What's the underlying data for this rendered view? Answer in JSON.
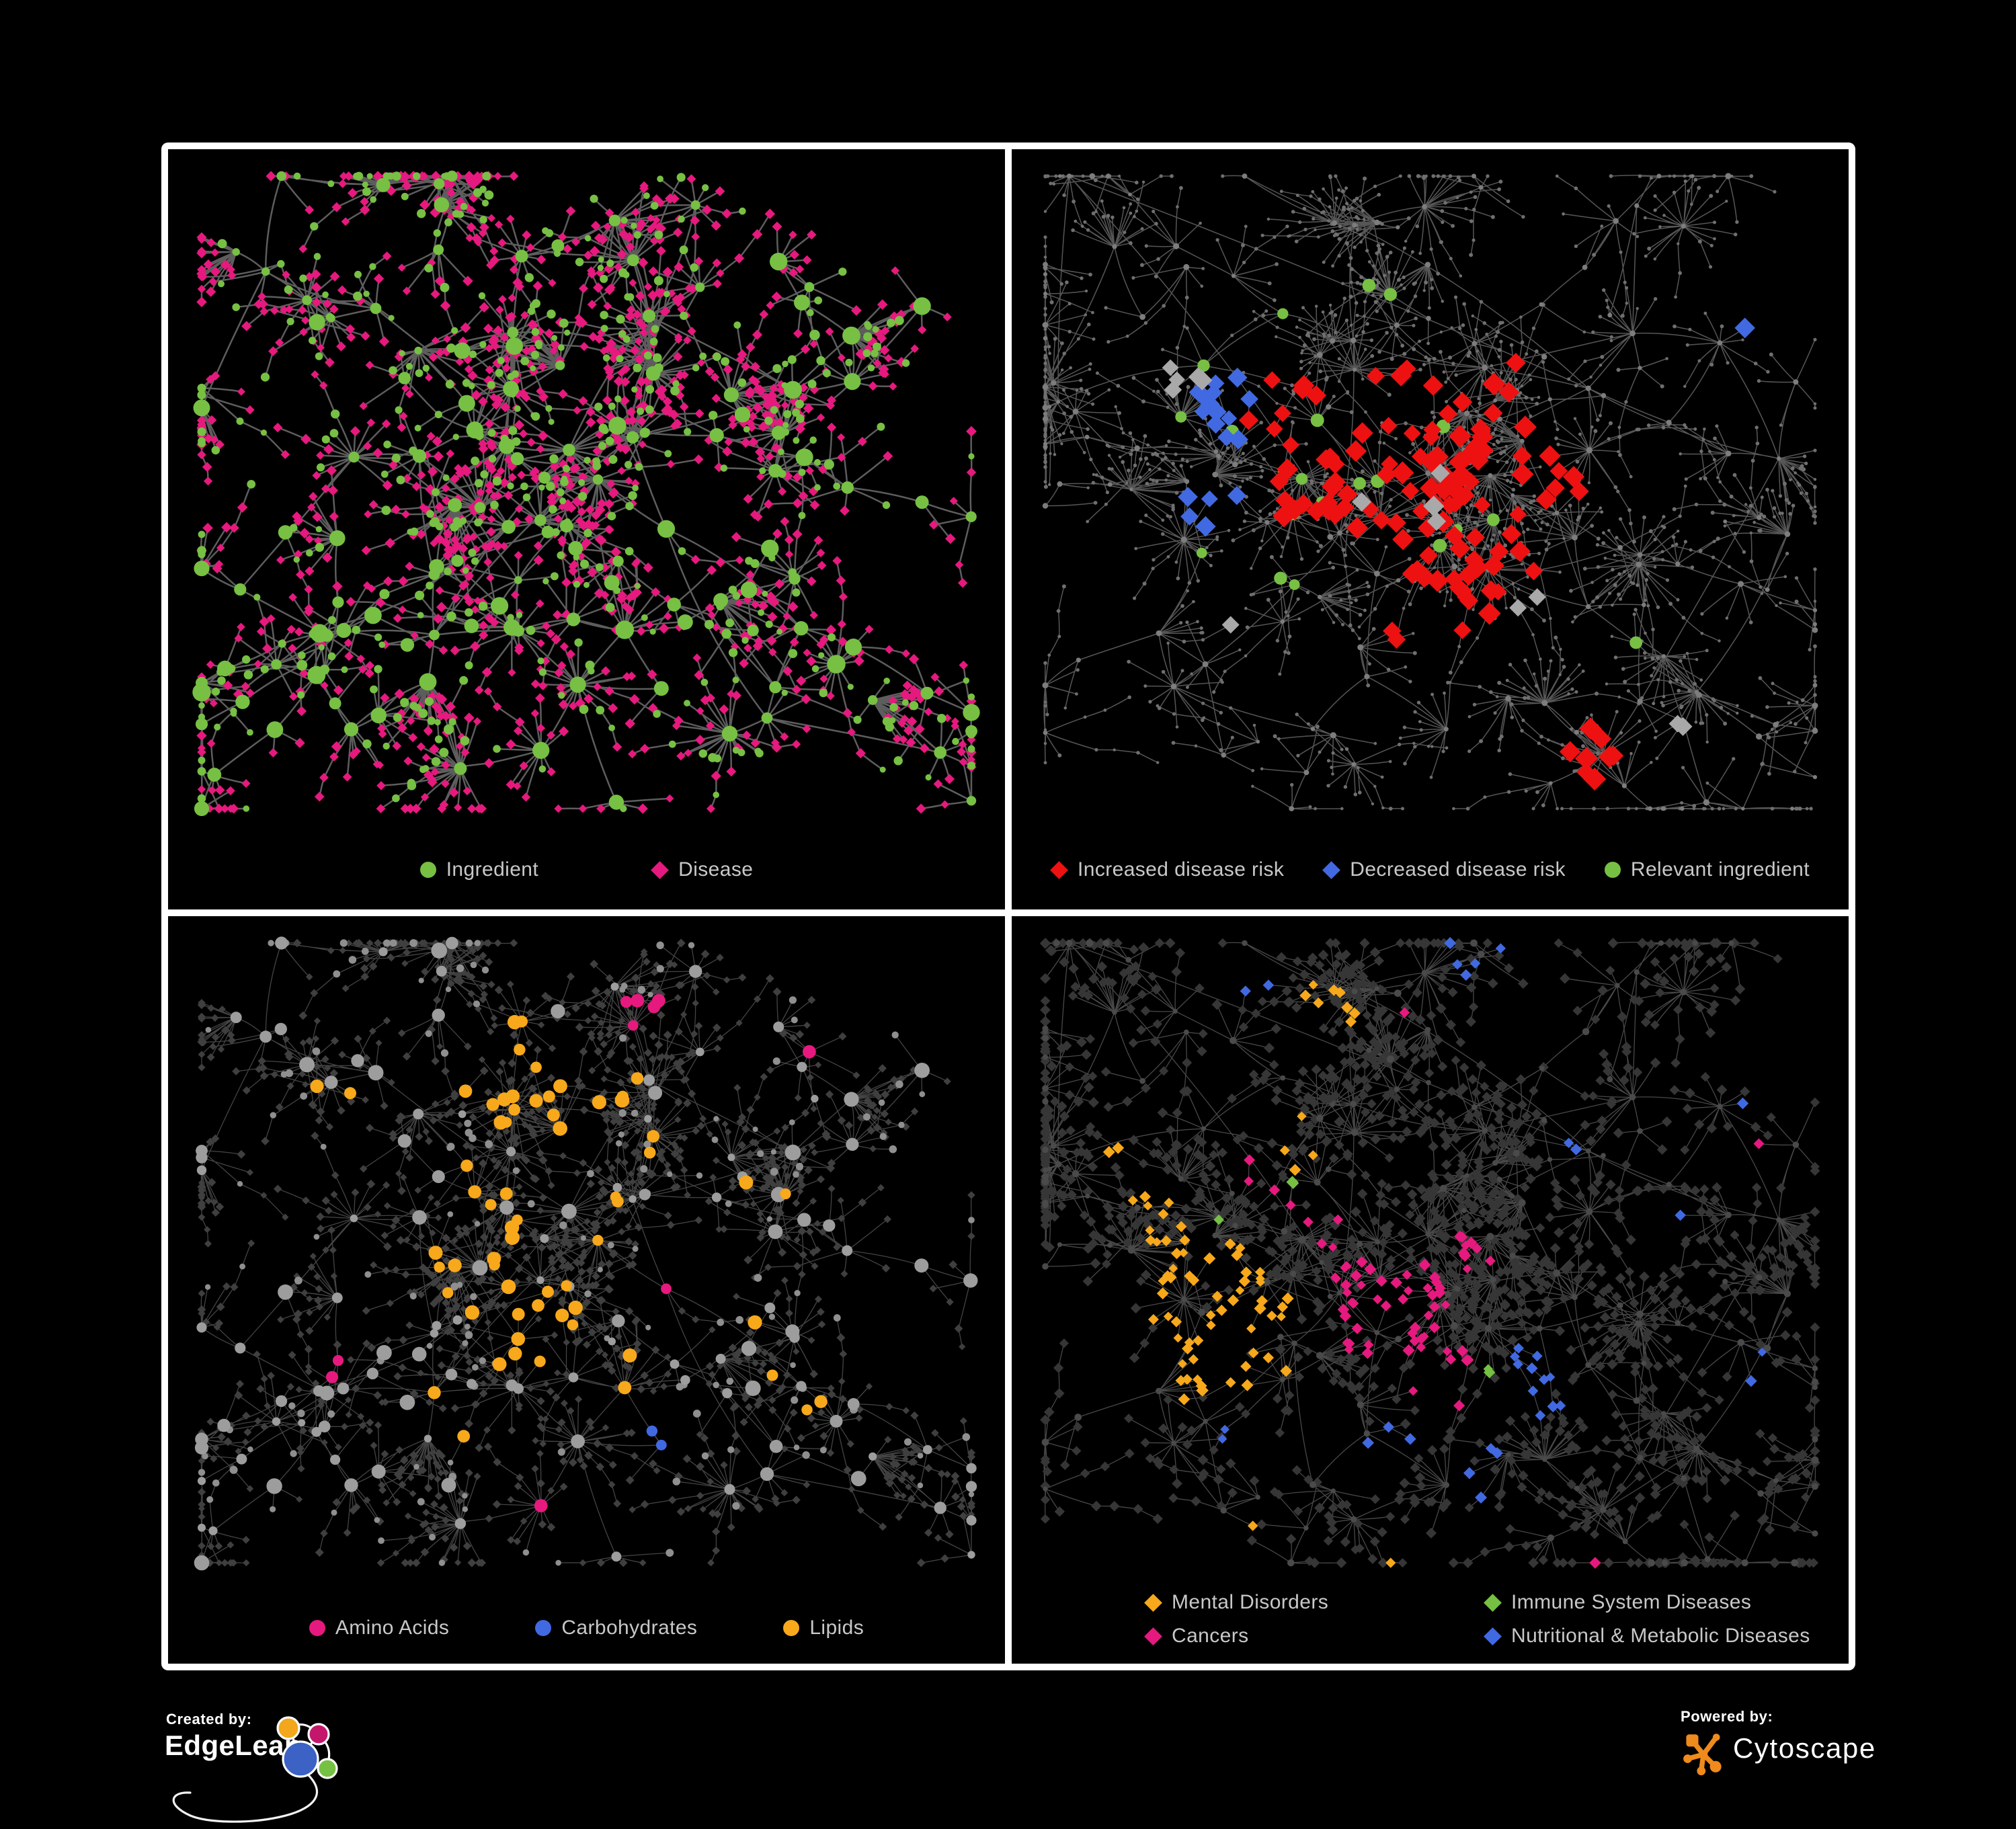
{
  "figure": {
    "background": "#000000",
    "panel_border": "#ffffff",
    "legend_text_color": "#c8c8c8"
  },
  "panels": [
    {
      "name": "ingredient-disease-network",
      "legend_rows": [
        [
          {
            "label": "Ingredient",
            "shape": "circle",
            "color": "#77c043"
          },
          {
            "label": "Disease",
            "shape": "diamond",
            "color": "#e6197e"
          }
        ]
      ],
      "network": {
        "layout_seed": 7,
        "style_seed": 21,
        "hub_count": 118,
        "chains": 7,
        "edge": {
          "color": "#6d6d6d",
          "width": 2.5,
          "opacity": 0.85
        },
        "hub": {
          "shape": "circle",
          "color": "#77c043",
          "rmin": 5.5,
          "rmax": 14
        },
        "leaf": {
          "shape": "diamond",
          "color": "#e6197e",
          "smin": 6,
          "smax": 8
        },
        "leaf_alt": {
          "shape": "circle",
          "color": "#77c043",
          "rmin": 4.5,
          "rmax": 7,
          "prob": 0.28
        },
        "highlights": []
      }
    },
    {
      "name": "disease-risk-network",
      "legend_rows": [
        [
          {
            "label": "Increased disease risk",
            "shape": "diamond",
            "color": "#ee1111"
          },
          {
            "label": "Decreased disease risk",
            "shape": "diamond",
            "color": "#4169e1"
          },
          {
            "label": "Relevant ingredient",
            "shape": "circle",
            "color": "#77c043"
          }
        ]
      ],
      "network": {
        "layout_seed": 13,
        "style_seed": 33,
        "hub_count": 110,
        "chains": 16,
        "edge": {
          "color": "#5f5f5f",
          "width": 1.5,
          "opacity": 0.9
        },
        "hub": {
          "shape": "circle",
          "color": "#7d7d7d",
          "rmin": 2.8,
          "rmax": 4.6
        },
        "leaf": {
          "shape": "circle",
          "color": "#6f6f6f",
          "smin": 2.2,
          "smax": 3.0
        },
        "leaf_alt": null,
        "highlights": [
          {
            "name": "relevant-ingredient",
            "target": "hub",
            "shape": "circle",
            "color": "#77c043",
            "size": 9,
            "zones": [
              [
                0.27,
                0.3,
                0.1,
                0.85
              ],
              [
                0.42,
                0.4,
                0.11,
                0.8
              ],
              [
                0.3,
                0.52,
                0.08,
                0.7
              ],
              [
                0.14,
                0.3,
                0.06,
                0.7
              ],
              [
                0.55,
                0.5,
                0.06,
                0.6
              ],
              [
                0.74,
                0.63,
                0.04,
                0.8
              ],
              [
                0.41,
                0.17,
                0.05,
                0.5
              ],
              [
                0.1,
                0.42,
                0.04,
                0.5
              ]
            ]
          },
          {
            "name": "increased-disease-risk",
            "target": "leaf",
            "shape": "diamond",
            "color": "#ee1111",
            "size": 15,
            "zones": [
              [
                0.45,
                0.4,
                0.12,
                0.3
              ],
              [
                0.55,
                0.55,
                0.09,
                0.27
              ],
              [
                0.31,
                0.32,
                0.05,
                0.27
              ],
              [
                0.65,
                0.42,
                0.045,
                0.36
              ],
              [
                0.88,
                0.33,
                0.025,
                0.8
              ],
              [
                0.68,
                0.8,
                0.04,
                0.42
              ],
              [
                0.6,
                0.33,
                0.05,
                0.24
              ],
              [
                0.5,
                0.63,
                0.05,
                0.24
              ],
              [
                0.36,
                0.45,
                0.05,
                0.24
              ]
            ]
          },
          {
            "name": "decreased-disease-risk",
            "target": "leaf",
            "shape": "diamond",
            "color": "#4169e1",
            "size": 14,
            "zones": [
              [
                0.255,
                0.34,
                0.045,
                0.7
              ],
              [
                0.24,
                0.47,
                0.035,
                0.7
              ],
              [
                0.895,
                0.245,
                0.022,
                0.9
              ]
            ]
          },
          {
            "name": "unchanged-risk",
            "target": "leaf",
            "shape": "diamond",
            "color": "#a9a9a9",
            "size": 14,
            "zones": [
              [
                0.205,
                0.3,
                0.028,
                0.6
              ],
              [
                0.46,
                0.46,
                0.07,
                0.05
              ],
              [
                0.25,
                0.62,
                0.02,
                0.6
              ],
              [
                0.63,
                0.6,
                0.028,
                0.4
              ],
              [
                0.79,
                0.77,
                0.02,
                0.6
              ]
            ]
          }
        ]
      }
    },
    {
      "name": "nutrient-class-network",
      "legend_rows": [
        [
          {
            "label": "Amino Acids",
            "shape": "circle",
            "color": "#e6197e"
          },
          {
            "label": "Carbohydrates",
            "shape": "circle",
            "color": "#4169e1"
          },
          {
            "label": "Lipids",
            "shape": "circle",
            "color": "#f7a81b"
          }
        ]
      ],
      "network": {
        "layout_seed": 7,
        "style_seed": 45,
        "hub_count": 118,
        "chains": 7,
        "edge": {
          "color": "#a2a2a2",
          "width": 1.3,
          "opacity": 0.42
        },
        "hub": {
          "shape": "circle",
          "color": "#9d9d9d",
          "rmin": 5.5,
          "rmax": 12
        },
        "leaf": {
          "shape": "diamond",
          "color": "#3f3f3f",
          "smin": 5,
          "smax": 6.5
        },
        "leaf_alt": {
          "shape": "circle",
          "color": "#8f8f8f",
          "rmin": 4,
          "rmax": 6,
          "prob": 0.12
        },
        "highlights": [
          {
            "name": "lipids",
            "target": "circle",
            "shape": "circle",
            "color": "#f7a81b",
            "size": 9.5,
            "zones": [
              [
                0.45,
                0.21,
                0.1,
                0.85
              ],
              [
                0.34,
                0.42,
                0.1,
                0.6
              ],
              [
                0.43,
                0.54,
                0.07,
                0.55
              ],
              [
                0.56,
                0.63,
                0.05,
                0.9
              ],
              [
                0.6,
                0.32,
                0.16,
                0.22
              ],
              [
                0.2,
                0.28,
                0.06,
                0.3
              ],
              [
                0.75,
                0.6,
                0.08,
                0.25
              ],
              [
                0.33,
                0.67,
                0.05,
                0.35
              ],
              [
                0.13,
                0.88,
                0.03,
                0.5
              ]
            ]
          },
          {
            "name": "carbohydrates",
            "target": "circle",
            "shape": "circle",
            "color": "#4169e1",
            "size": 9,
            "zones": [
              [
                0.47,
                0.2,
                0.06,
                0.55
              ],
              [
                0.26,
                0.29,
                0.02,
                0.7
              ],
              [
                0.58,
                0.7,
                0.025,
                0.7
              ],
              [
                0.83,
                0.7,
                0.02,
                0.8
              ],
              [
                0.13,
                0.74,
                0.018,
                0.9
              ],
              [
                0.37,
                0.83,
                0.02,
                0.6
              ]
            ]
          },
          {
            "name": "amino-acids",
            "target": "circle",
            "shape": "circle",
            "color": "#e6197e",
            "size": 9,
            "zones": [
              [
                0.11,
                0.4,
                0.045,
                0.6
              ],
              [
                0.19,
                0.6,
                0.04,
                0.6
              ],
              [
                0.47,
                0.76,
                0.05,
                0.45
              ],
              [
                0.42,
                0.88,
                0.04,
                0.5
              ],
              [
                0.74,
                0.46,
                0.03,
                0.6
              ],
              [
                0.57,
                0.13,
                0.03,
                0.6
              ],
              [
                0.95,
                0.06,
                0.02,
                0.9
              ],
              [
                0.24,
                0.17,
                0.03,
                0.5
              ],
              [
                0.6,
                0.48,
                0.03,
                0.4
              ],
              [
                0.78,
                0.18,
                0.02,
                0.5
              ]
            ]
          }
        ]
      }
    },
    {
      "name": "disease-class-network",
      "legend_rows": [
        [
          {
            "label": "Mental Disorders",
            "shape": "diamond",
            "color": "#f7a81b"
          },
          {
            "label": "Immune System Diseases",
            "shape": "diamond",
            "color": "#76c043"
          }
        ],
        [
          {
            "label": "Cancers",
            "shape": "diamond",
            "color": "#e6197e"
          },
          {
            "label": "Nutritional & Metabolic Diseases",
            "shape": "diamond",
            "color": "#4169e1"
          }
        ]
      ],
      "network": {
        "layout_seed": 13,
        "style_seed": 57,
        "hub_count": 110,
        "chains": 16,
        "edge": {
          "color": "#8f8f8f",
          "width": 1.3,
          "opacity": 0.5
        },
        "hub": {
          "shape": "circle",
          "color": "#4a4a4a",
          "rmin": 3.5,
          "rmax": 5.5
        },
        "leaf": {
          "shape": "diamond",
          "color": "#363636",
          "smin": 7,
          "smax": 8
        },
        "leaf_alt": null,
        "highlights": [
          {
            "name": "mental-disorders",
            "target": "leaf",
            "shape": "diamond",
            "color": "#f7a81b",
            "size": 8,
            "zones": [
              [
                0.245,
                0.56,
                0.1,
                0.85
              ],
              [
                0.22,
                0.47,
                0.06,
                0.5
              ],
              [
                0.33,
                0.3,
                0.05,
                0.25
              ],
              [
                0.38,
                0.12,
                0.035,
                0.4
              ],
              [
                0.17,
                0.4,
                0.035,
                0.4
              ],
              [
                0.3,
                0.8,
                0.025,
                0.5
              ],
              [
                0.47,
                0.86,
                0.018,
                0.6
              ],
              [
                0.12,
                0.3,
                0.03,
                0.3
              ]
            ]
          },
          {
            "name": "cancers",
            "target": "leaf",
            "shape": "diamond",
            "color": "#e6197e",
            "size": 8,
            "zones": [
              [
                0.445,
                0.52,
                0.075,
                0.65
              ],
              [
                0.38,
                0.4,
                0.05,
                0.35
              ],
              [
                0.52,
                0.62,
                0.045,
                0.45
              ],
              [
                0.29,
                0.35,
                0.03,
                0.3
              ],
              [
                0.9,
                0.33,
                0.035,
                0.55
              ],
              [
                0.7,
                0.85,
                0.018,
                0.55
              ],
              [
                0.48,
                0.13,
                0.02,
                0.4
              ],
              [
                0.56,
                0.45,
                0.04,
                0.3
              ]
            ]
          },
          {
            "name": "immune-system-diseases",
            "target": "leaf",
            "shape": "diamond",
            "color": "#76c043",
            "size": 8,
            "zones": [
              [
                0.33,
                0.37,
                0.02,
                0.45
              ],
              [
                0.36,
                0.55,
                0.015,
                0.5
              ],
              [
                0.45,
                0.3,
                0.015,
                0.45
              ],
              [
                0.57,
                0.6,
                0.015,
                0.45
              ],
              [
                0.4,
                0.9,
                0.012,
                0.6
              ],
              [
                0.25,
                0.42,
                0.015,
                0.4
              ]
            ]
          },
          {
            "name": "nutritional-metabolic-diseases",
            "target": "leaf",
            "shape": "diamond",
            "color": "#4169e1",
            "size": 8,
            "zones": [
              [
                0.62,
                0.62,
                0.05,
                0.55
              ],
              [
                0.55,
                0.74,
                0.045,
                0.45
              ],
              [
                0.77,
                0.42,
                0.05,
                0.35
              ],
              [
                0.7,
                0.3,
                0.035,
                0.38
              ],
              [
                0.85,
                0.25,
                0.04,
                0.35
              ],
              [
                0.3,
                0.1,
                0.05,
                0.3
              ],
              [
                0.55,
                0.05,
                0.035,
                0.38
              ],
              [
                0.92,
                0.12,
                0.025,
                0.5
              ],
              [
                0.13,
                0.14,
                0.02,
                0.4
              ],
              [
                0.6,
                0.2,
                0.025,
                0.38
              ],
              [
                0.45,
                0.7,
                0.03,
                0.3
              ],
              [
                0.88,
                0.6,
                0.03,
                0.3
              ],
              [
                0.25,
                0.7,
                0.02,
                0.3
              ]
            ]
          }
        ]
      }
    }
  ],
  "footer": {
    "created_by_label": "Created by:",
    "created_by_brand": "EdgeLeap",
    "powered_by_label": "Powered by:",
    "powered_by_brand": "Cytoscape",
    "edgeleap_logo_colors": {
      "blue": "#3b62c4",
      "orange": "#f2a71c",
      "pink": "#c4176b",
      "green": "#76c043"
    },
    "cytoscape_logo_color": "#ef8a1c"
  }
}
